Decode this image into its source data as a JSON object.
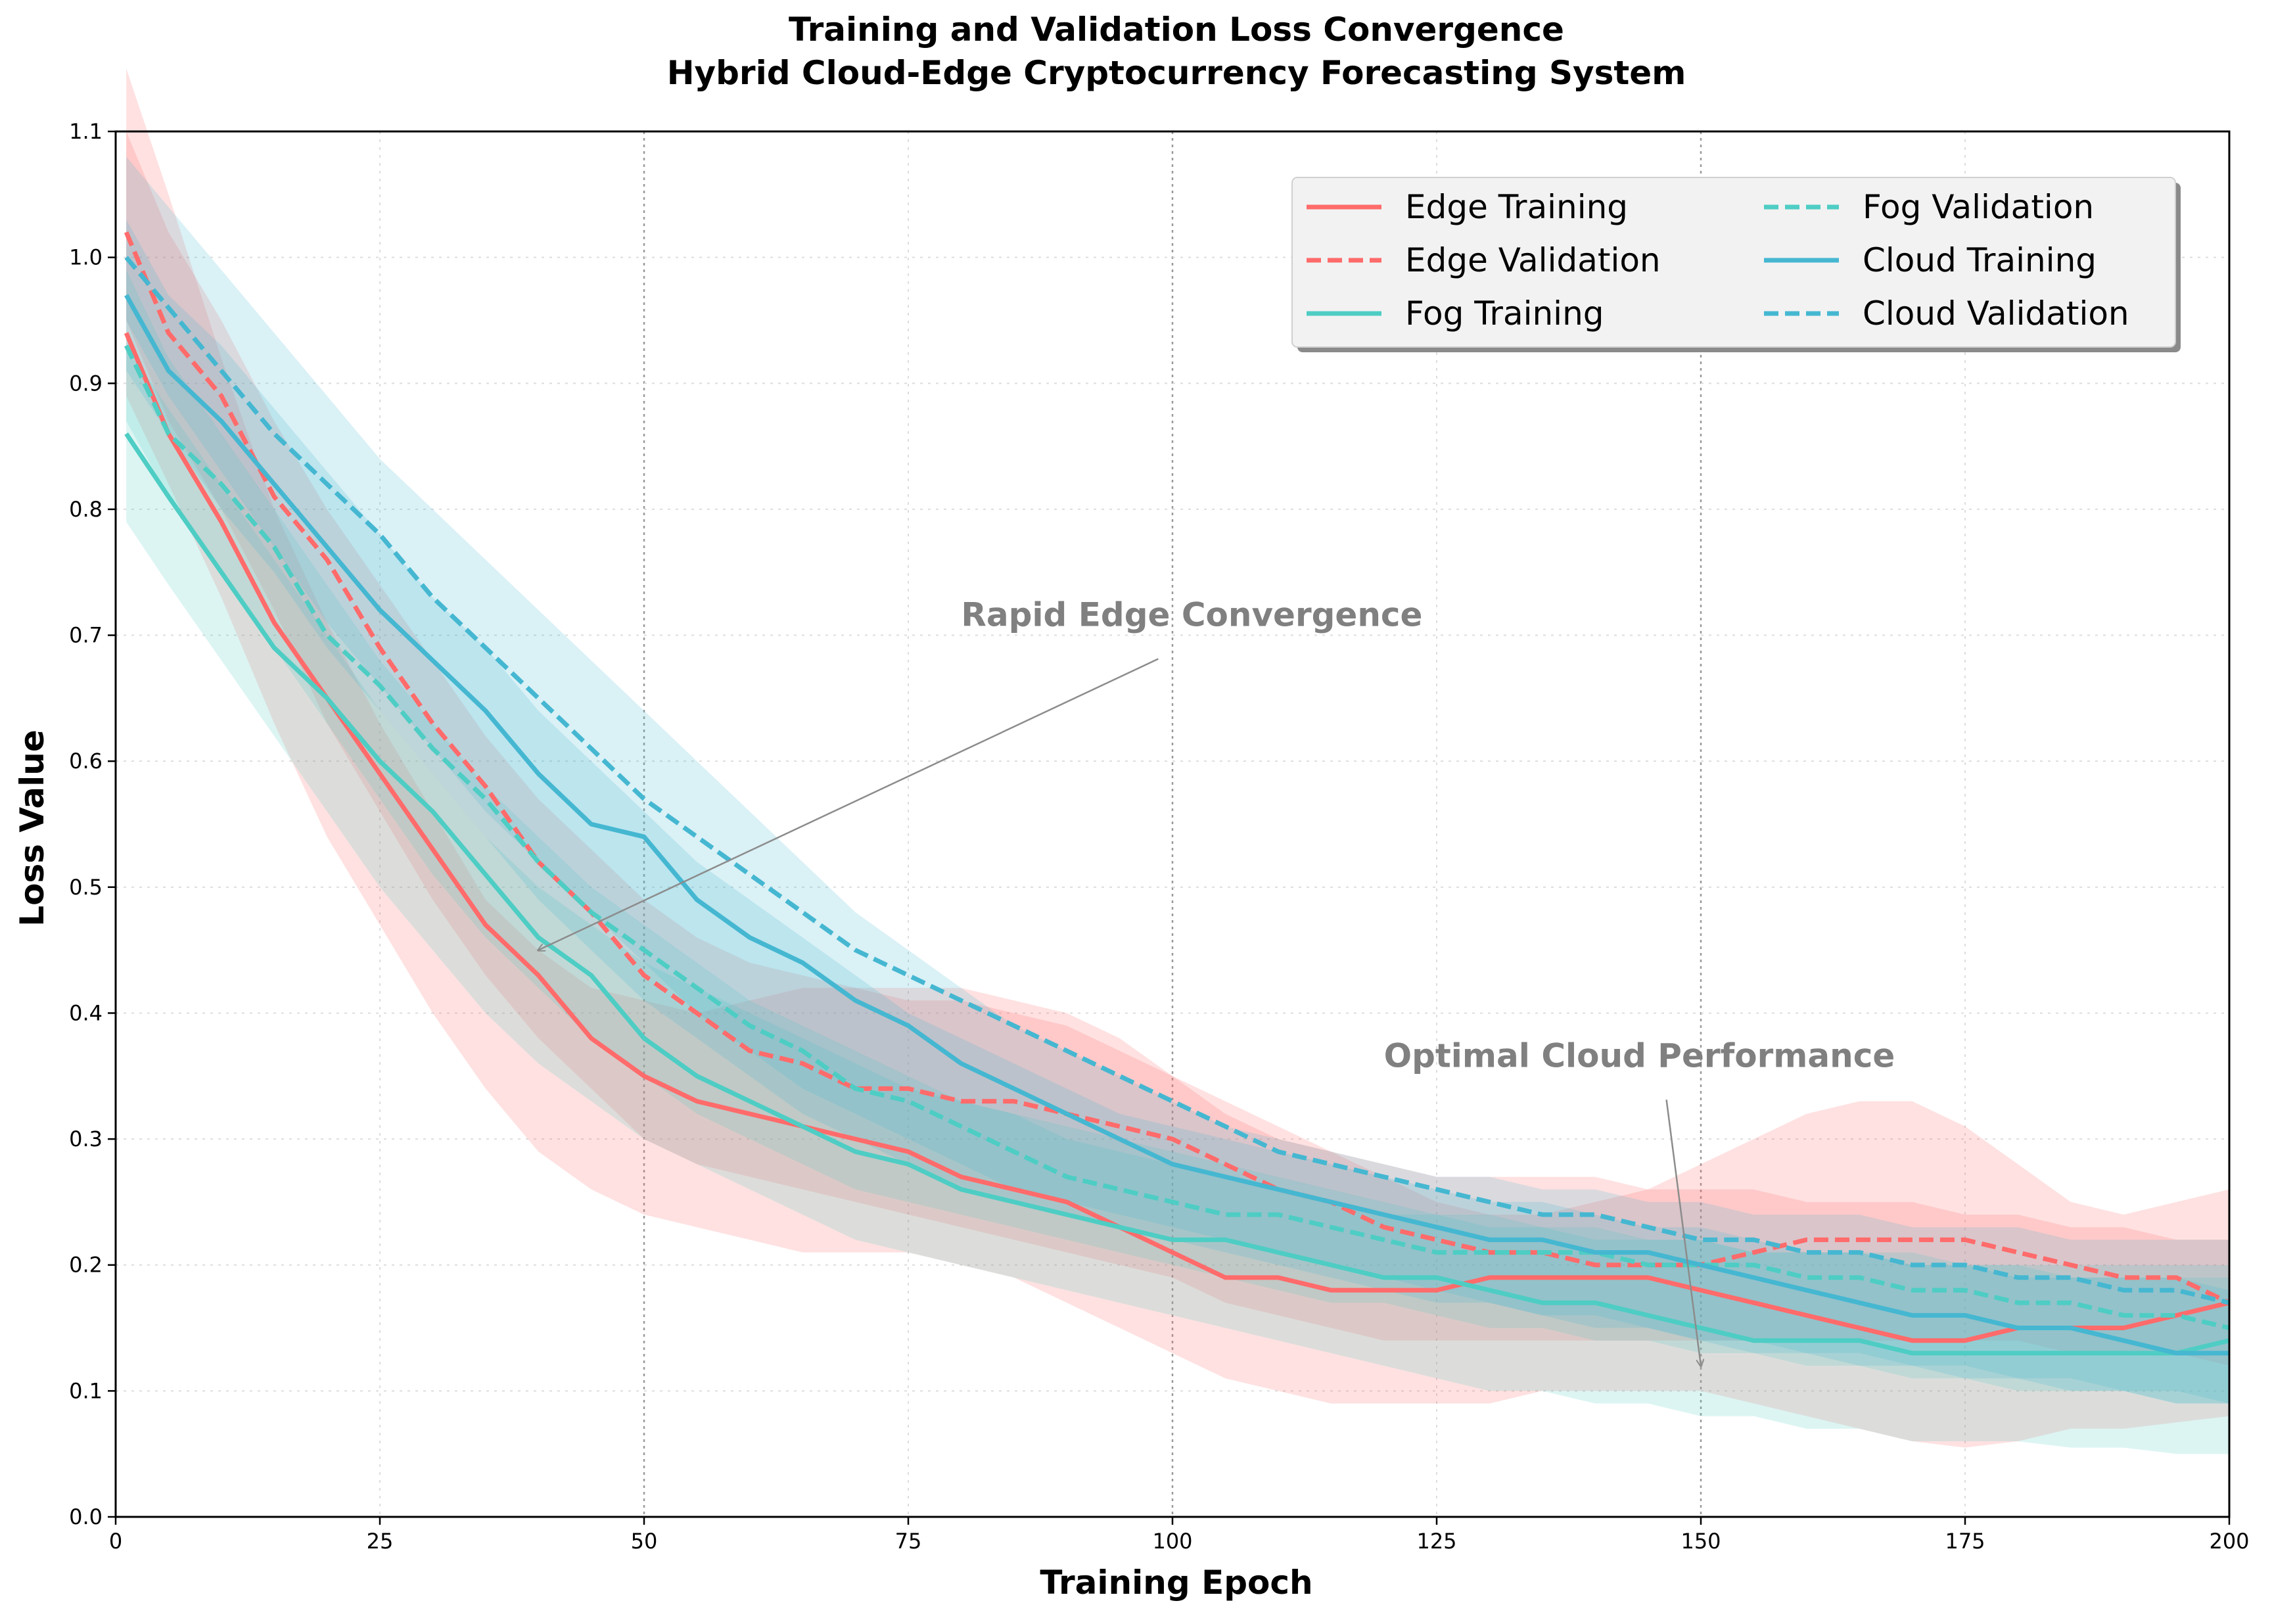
{
  "chart_data": {
    "type": "line",
    "title": "Training and Validation Loss Convergence",
    "subtitle": "Hybrid Cloud-Edge Cryptocurrency Forecasting System",
    "xlabel": "Training Epoch",
    "ylabel": "Loss Value",
    "xlim": [
      0,
      200
    ],
    "ylim": [
      0.0,
      1.1
    ],
    "x_ticks": [
      0,
      25,
      50,
      75,
      100,
      125,
      150,
      175,
      200
    ],
    "y_ticks": [
      0.0,
      0.1,
      0.2,
      0.3,
      0.4,
      0.5,
      0.6,
      0.7,
      0.8,
      0.9,
      1.0,
      1.1
    ],
    "x_tick_labels": [
      "0",
      "25",
      "50",
      "75",
      "100",
      "125",
      "150",
      "175",
      "200"
    ],
    "y_tick_labels": [
      "0.0",
      "0.1",
      "0.2",
      "0.3",
      "0.4",
      "0.5",
      "0.6",
      "0.7",
      "0.8",
      "0.9",
      "1.0",
      "1.1"
    ],
    "grid": true,
    "highlight_x": [
      50,
      100,
      150
    ],
    "legend_position": "top-right",
    "x": [
      1,
      5,
      10,
      15,
      20,
      25,
      30,
      35,
      40,
      45,
      50,
      55,
      60,
      65,
      70,
      75,
      80,
      85,
      90,
      95,
      100,
      105,
      110,
      115,
      120,
      125,
      130,
      135,
      140,
      145,
      150,
      155,
      160,
      165,
      170,
      175,
      180,
      185,
      190,
      195,
      200
    ],
    "series": [
      {
        "name": "Edge Training",
        "color": "#ff6b6b",
        "style": "solid",
        "values": [
          0.94,
          0.86,
          0.79,
          0.71,
          0.65,
          0.59,
          0.53,
          0.47,
          0.43,
          0.38,
          0.35,
          0.33,
          0.32,
          0.31,
          0.3,
          0.29,
          0.27,
          0.26,
          0.25,
          0.23,
          0.21,
          0.19,
          0.19,
          0.18,
          0.18,
          0.18,
          0.19,
          0.19,
          0.19,
          0.19,
          0.18,
          0.17,
          0.16,
          0.15,
          0.14,
          0.14,
          0.15,
          0.15,
          0.15,
          0.16,
          0.17
        ],
        "band_lower": [
          0.89,
          0.82,
          0.73,
          0.63,
          0.54,
          0.47,
          0.4,
          0.34,
          0.29,
          0.26,
          0.24,
          0.23,
          0.22,
          0.21,
          0.21,
          0.21,
          0.2,
          0.19,
          0.17,
          0.15,
          0.13,
          0.11,
          0.1,
          0.09,
          0.09,
          0.09,
          0.09,
          0.1,
          0.1,
          0.1,
          0.1,
          0.09,
          0.08,
          0.07,
          0.06,
          0.055,
          0.06,
          0.07,
          0.07,
          0.075,
          0.08
        ],
        "band_upper": [
          1.15,
          1.05,
          0.92,
          0.8,
          0.71,
          0.63,
          0.56,
          0.49,
          0.45,
          0.42,
          0.41,
          0.4,
          0.41,
          0.42,
          0.42,
          0.42,
          0.42,
          0.41,
          0.4,
          0.38,
          0.35,
          0.32,
          0.3,
          0.29,
          0.27,
          0.25,
          0.24,
          0.24,
          0.25,
          0.26,
          0.28,
          0.3,
          0.32,
          0.33,
          0.33,
          0.31,
          0.28,
          0.25,
          0.24,
          0.25,
          0.26
        ]
      },
      {
        "name": "Edge Validation",
        "color": "#ff6b6b",
        "style": "dashed",
        "values": [
          1.02,
          0.94,
          0.89,
          0.81,
          0.76,
          0.69,
          0.63,
          0.58,
          0.52,
          0.48,
          0.43,
          0.4,
          0.37,
          0.36,
          0.34,
          0.34,
          0.33,
          0.33,
          0.32,
          0.31,
          0.3,
          0.28,
          0.26,
          0.25,
          0.23,
          0.22,
          0.21,
          0.21,
          0.2,
          0.2,
          0.2,
          0.21,
          0.22,
          0.22,
          0.22,
          0.22,
          0.21,
          0.2,
          0.19,
          0.19,
          0.17
        ],
        "band_lower": [
          0.95,
          0.87,
          0.8,
          0.72,
          0.63,
          0.56,
          0.49,
          0.43,
          0.38,
          0.34,
          0.3,
          0.28,
          0.27,
          0.26,
          0.25,
          0.24,
          0.23,
          0.22,
          0.21,
          0.2,
          0.19,
          0.17,
          0.16,
          0.15,
          0.14,
          0.14,
          0.14,
          0.14,
          0.14,
          0.14,
          0.14,
          0.14,
          0.14,
          0.14,
          0.14,
          0.14,
          0.14,
          0.13,
          0.13,
          0.13,
          0.12
        ],
        "band_upper": [
          1.1,
          1.02,
          0.95,
          0.87,
          0.8,
          0.74,
          0.68,
          0.62,
          0.57,
          0.53,
          0.49,
          0.46,
          0.44,
          0.43,
          0.42,
          0.41,
          0.41,
          0.4,
          0.39,
          0.37,
          0.35,
          0.33,
          0.31,
          0.29,
          0.28,
          0.27,
          0.27,
          0.27,
          0.27,
          0.26,
          0.26,
          0.26,
          0.25,
          0.25,
          0.25,
          0.24,
          0.24,
          0.23,
          0.23,
          0.22,
          0.22
        ]
      },
      {
        "name": "Fog Training",
        "color": "#4ecdc4",
        "style": "solid",
        "values": [
          0.86,
          0.81,
          0.75,
          0.69,
          0.65,
          0.6,
          0.56,
          0.51,
          0.46,
          0.43,
          0.38,
          0.35,
          0.33,
          0.31,
          0.29,
          0.28,
          0.26,
          0.25,
          0.24,
          0.23,
          0.22,
          0.22,
          0.21,
          0.2,
          0.19,
          0.19,
          0.18,
          0.17,
          0.17,
          0.16,
          0.15,
          0.14,
          0.14,
          0.14,
          0.13,
          0.13,
          0.13,
          0.13,
          0.13,
          0.13,
          0.14
        ],
        "band_lower": [
          0.79,
          0.74,
          0.68,
          0.62,
          0.56,
          0.5,
          0.45,
          0.4,
          0.36,
          0.33,
          0.3,
          0.28,
          0.26,
          0.24,
          0.22,
          0.21,
          0.2,
          0.19,
          0.18,
          0.17,
          0.16,
          0.15,
          0.14,
          0.13,
          0.12,
          0.11,
          0.1,
          0.1,
          0.09,
          0.09,
          0.08,
          0.08,
          0.07,
          0.07,
          0.06,
          0.06,
          0.06,
          0.055,
          0.055,
          0.05,
          0.05
        ],
        "band_upper": [
          0.93,
          0.88,
          0.82,
          0.76,
          0.7,
          0.64,
          0.59,
          0.54,
          0.5,
          0.47,
          0.44,
          0.42,
          0.4,
          0.38,
          0.36,
          0.34,
          0.33,
          0.32,
          0.31,
          0.3,
          0.29,
          0.28,
          0.27,
          0.26,
          0.25,
          0.24,
          0.24,
          0.23,
          0.23,
          0.22,
          0.22,
          0.21,
          0.21,
          0.21,
          0.2,
          0.2,
          0.2,
          0.19,
          0.19,
          0.19,
          0.19
        ]
      },
      {
        "name": "Fog Validation",
        "color": "#4ecdc4",
        "style": "dashed",
        "values": [
          0.93,
          0.86,
          0.82,
          0.77,
          0.7,
          0.66,
          0.61,
          0.57,
          0.52,
          0.48,
          0.45,
          0.42,
          0.39,
          0.37,
          0.34,
          0.33,
          0.31,
          0.29,
          0.27,
          0.26,
          0.25,
          0.24,
          0.24,
          0.23,
          0.22,
          0.21,
          0.21,
          0.21,
          0.21,
          0.2,
          0.2,
          0.2,
          0.19,
          0.19,
          0.18,
          0.18,
          0.17,
          0.17,
          0.16,
          0.16,
          0.15
        ],
        "band_lower": [
          0.87,
          0.81,
          0.75,
          0.69,
          0.63,
          0.57,
          0.51,
          0.46,
          0.42,
          0.38,
          0.35,
          0.32,
          0.3,
          0.28,
          0.26,
          0.25,
          0.24,
          0.23,
          0.22,
          0.21,
          0.2,
          0.19,
          0.18,
          0.17,
          0.17,
          0.16,
          0.15,
          0.15,
          0.14,
          0.14,
          0.13,
          0.13,
          0.12,
          0.12,
          0.11,
          0.11,
          0.1,
          0.1,
          0.1,
          0.09,
          0.09
        ],
        "band_upper": [
          0.99,
          0.92,
          0.86,
          0.8,
          0.74,
          0.68,
          0.63,
          0.58,
          0.54,
          0.5,
          0.47,
          0.44,
          0.41,
          0.39,
          0.37,
          0.35,
          0.33,
          0.32,
          0.3,
          0.29,
          0.28,
          0.27,
          0.26,
          0.25,
          0.24,
          0.24,
          0.23,
          0.23,
          0.22,
          0.22,
          0.22,
          0.21,
          0.21,
          0.21,
          0.21,
          0.2,
          0.2,
          0.2,
          0.2,
          0.2,
          0.2
        ]
      },
      {
        "name": "Cloud Training",
        "color": "#45b7d1",
        "style": "solid",
        "values": [
          0.97,
          0.91,
          0.87,
          0.82,
          0.77,
          0.72,
          0.68,
          0.64,
          0.59,
          0.55,
          0.54,
          0.49,
          0.46,
          0.44,
          0.41,
          0.39,
          0.36,
          0.34,
          0.32,
          0.3,
          0.28,
          0.27,
          0.26,
          0.25,
          0.24,
          0.23,
          0.22,
          0.22,
          0.21,
          0.21,
          0.2,
          0.19,
          0.18,
          0.17,
          0.16,
          0.16,
          0.15,
          0.15,
          0.14,
          0.13,
          0.13
        ],
        "band_lower": [
          0.91,
          0.86,
          0.8,
          0.75,
          0.69,
          0.64,
          0.59,
          0.54,
          0.49,
          0.45,
          0.41,
          0.38,
          0.35,
          0.32,
          0.3,
          0.28,
          0.26,
          0.25,
          0.24,
          0.23,
          0.22,
          0.21,
          0.2,
          0.19,
          0.18,
          0.17,
          0.17,
          0.16,
          0.15,
          0.15,
          0.14,
          0.13,
          0.13,
          0.12,
          0.12,
          0.11,
          0.11,
          0.1,
          0.1,
          0.09,
          0.09
        ],
        "band_upper": [
          1.03,
          0.97,
          0.93,
          0.88,
          0.83,
          0.78,
          0.73,
          0.69,
          0.64,
          0.6,
          0.56,
          0.52,
          0.49,
          0.46,
          0.43,
          0.4,
          0.38,
          0.36,
          0.34,
          0.32,
          0.31,
          0.3,
          0.29,
          0.28,
          0.27,
          0.26,
          0.25,
          0.25,
          0.24,
          0.23,
          0.23,
          0.22,
          0.21,
          0.21,
          0.2,
          0.2,
          0.19,
          0.19,
          0.19,
          0.19,
          0.18
        ]
      },
      {
        "name": "Cloud Validation",
        "color": "#45b7d1",
        "style": "dashed",
        "values": [
          1.0,
          0.96,
          0.91,
          0.86,
          0.82,
          0.78,
          0.73,
          0.69,
          0.65,
          0.61,
          0.57,
          0.54,
          0.51,
          0.48,
          0.45,
          0.43,
          0.41,
          0.39,
          0.37,
          0.35,
          0.33,
          0.31,
          0.29,
          0.28,
          0.27,
          0.26,
          0.25,
          0.24,
          0.24,
          0.23,
          0.22,
          0.22,
          0.21,
          0.21,
          0.2,
          0.2,
          0.19,
          0.19,
          0.18,
          0.18,
          0.17
        ],
        "band_lower": [
          0.95,
          0.89,
          0.83,
          0.77,
          0.71,
          0.66,
          0.61,
          0.56,
          0.52,
          0.48,
          0.44,
          0.4,
          0.37,
          0.34,
          0.32,
          0.3,
          0.28,
          0.26,
          0.25,
          0.24,
          0.23,
          0.22,
          0.21,
          0.2,
          0.19,
          0.18,
          0.17,
          0.16,
          0.16,
          0.15,
          0.14,
          0.14,
          0.13,
          0.13,
          0.12,
          0.12,
          0.11,
          0.11,
          0.1,
          0.1,
          0.09
        ],
        "band_upper": [
          1.08,
          1.04,
          0.99,
          0.94,
          0.89,
          0.84,
          0.8,
          0.76,
          0.72,
          0.68,
          0.64,
          0.6,
          0.56,
          0.52,
          0.48,
          0.45,
          0.42,
          0.39,
          0.37,
          0.35,
          0.33,
          0.31,
          0.3,
          0.29,
          0.28,
          0.27,
          0.27,
          0.26,
          0.26,
          0.25,
          0.25,
          0.24,
          0.24,
          0.24,
          0.23,
          0.23,
          0.23,
          0.22,
          0.22,
          0.22,
          0.22
        ]
      }
    ],
    "annotations": [
      {
        "text": "Rapid Edge Convergence",
        "text_at": [
          80,
          0.7
        ],
        "arrow_to": [
          40,
          0.45
        ]
      },
      {
        "text": "Optimal Cloud Performance",
        "text_at": [
          120,
          0.35
        ],
        "arrow_to": [
          150,
          0.12
        ]
      }
    ]
  }
}
